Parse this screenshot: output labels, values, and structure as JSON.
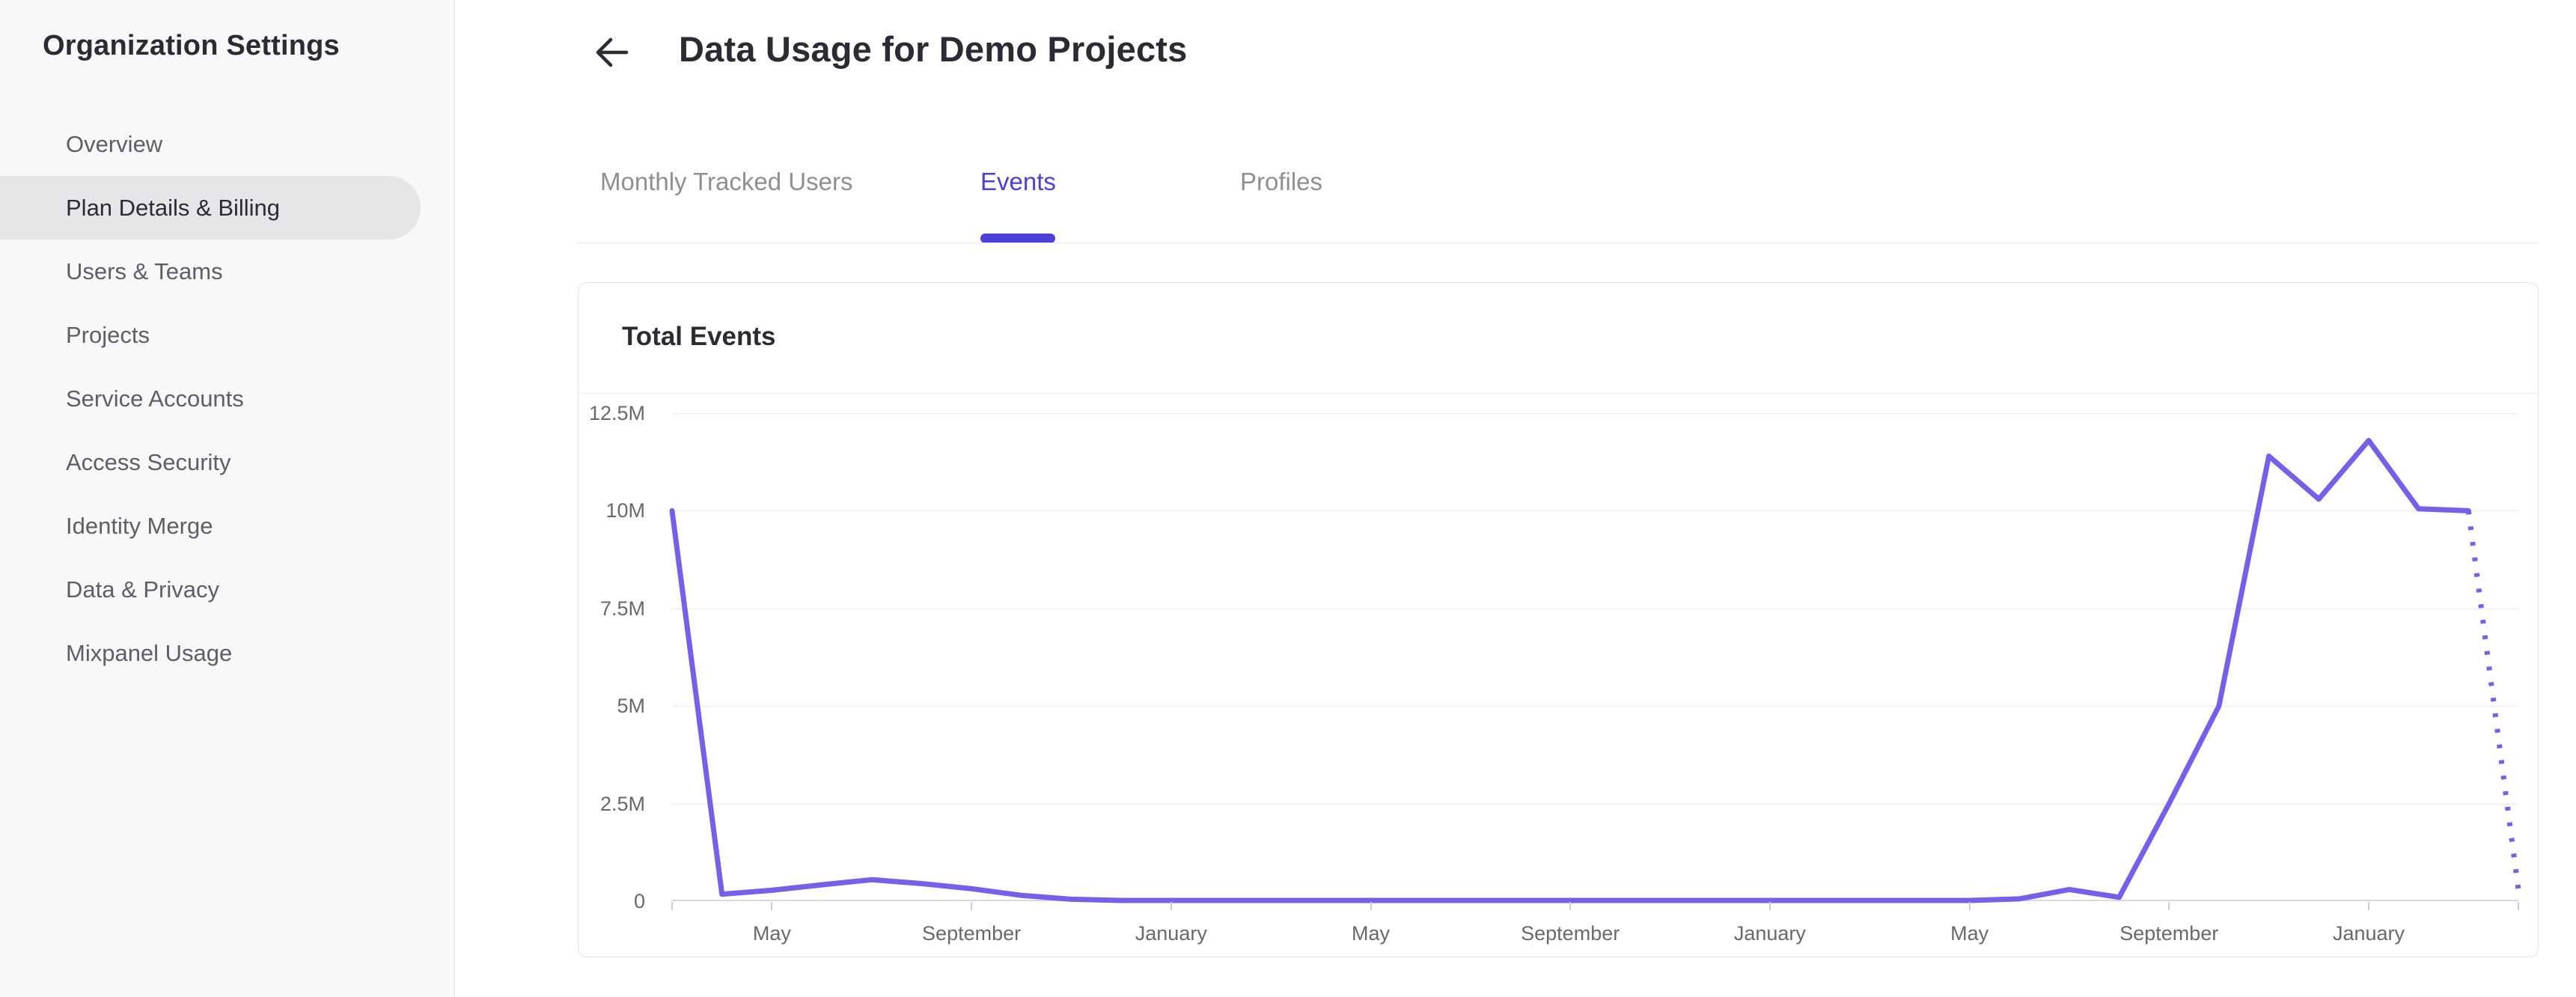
{
  "sidebar": {
    "title": "Organization Settings",
    "items": [
      {
        "label": "Overview",
        "selected": false
      },
      {
        "label": "Plan Details & Billing",
        "selected": true
      },
      {
        "label": "Users & Teams",
        "selected": false
      },
      {
        "label": "Projects",
        "selected": false
      },
      {
        "label": "Service Accounts",
        "selected": false
      },
      {
        "label": "Access Security",
        "selected": false
      },
      {
        "label": "Identity Merge",
        "selected": false
      },
      {
        "label": "Data & Privacy",
        "selected": false
      },
      {
        "label": "Mixpanel Usage",
        "selected": false
      }
    ]
  },
  "header": {
    "title": "Data Usage for Demo Projects",
    "back_icon": "left-arrow"
  },
  "tabs": [
    {
      "label": "Monthly Tracked Users",
      "active": false
    },
    {
      "label": "Events",
      "active": true
    },
    {
      "label": "Profiles",
      "active": false
    }
  ],
  "card": {
    "title": "Total Events"
  },
  "colors": {
    "accent_tab": "#4c40da",
    "chart_line": "#7560ea",
    "sidebar_bg": "#f8f8f9",
    "selected_pill": "#e6e6e9",
    "gridline": "#ededf0",
    "axis_text": "#68686f"
  },
  "chart_data": {
    "type": "line",
    "title": "Total Events",
    "legend": "none",
    "grid": "horizontal",
    "y_axis": {
      "tick_labels": [
        "12.5M",
        "10M",
        "7.5M",
        "5M",
        "2.5M",
        "0"
      ],
      "tick_values_millions": [
        12.5,
        10,
        7.5,
        5,
        2.5,
        0
      ],
      "max_millions": 12.5,
      "min_millions": 0
    },
    "x_axis": {
      "unit": "month",
      "tick_labels": [
        "May",
        "September",
        "January",
        "May",
        "September",
        "January",
        "May",
        "September",
        "January"
      ],
      "tick_month_indices": [
        2,
        6,
        10,
        14,
        18,
        22,
        26,
        30,
        34
      ],
      "edge_tick_month_indices": [
        0,
        37
      ],
      "total_months": 38
    },
    "series": [
      {
        "name": "Total Events",
        "color": "#7560ea",
        "values_millions": [
          10.0,
          0.18,
          0.28,
          0.42,
          0.55,
          0.45,
          0.32,
          0.15,
          0.05,
          0.02,
          0.02,
          0.02,
          0.02,
          0.02,
          0.02,
          0.02,
          0.02,
          0.02,
          0.02,
          0.02,
          0.02,
          0.02,
          0.02,
          0.02,
          0.02,
          0.02,
          0.02,
          0.06,
          0.3,
          0.1,
          2.5,
          5.0,
          11.4,
          10.3,
          11.8,
          10.05,
          10.0,
          0.3
        ],
        "projected_from_index": 36,
        "projection_style": "dotted"
      }
    ]
  }
}
